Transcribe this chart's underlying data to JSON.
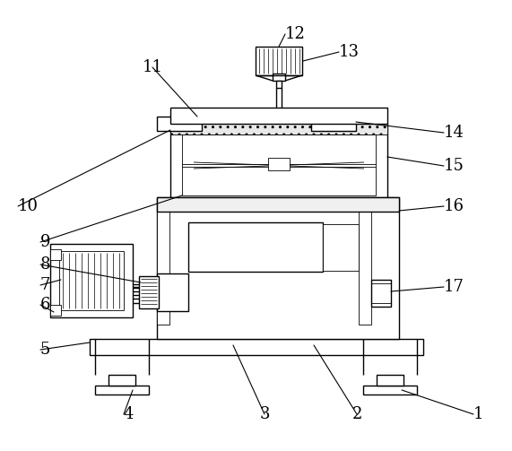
{
  "bg_color": "#ffffff",
  "line_color": "#000000",
  "lw": 1.0,
  "tlw": 0.6,
  "fs": 13
}
